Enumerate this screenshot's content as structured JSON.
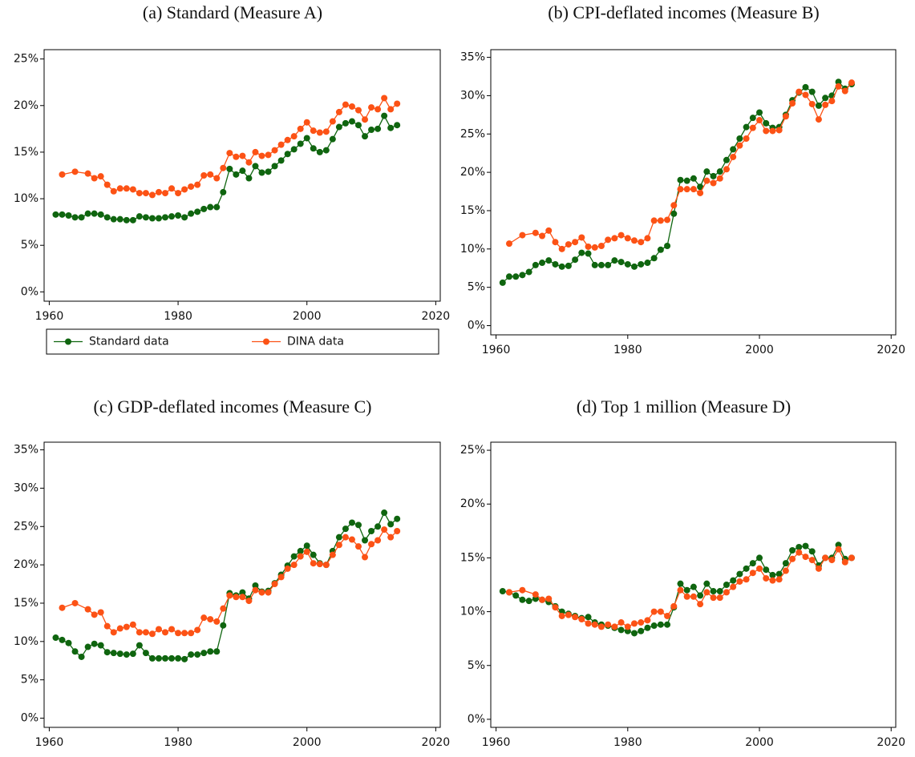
{
  "chart_data": [
    {
      "type": "line",
      "title": "(a) Standard (Measure A)",
      "legend": "bottom",
      "xlim": [
        1959.2,
        2020.7
      ],
      "xticks": [
        1960,
        1980,
        2000,
        2020
      ],
      "ylim": [
        -1,
        26
      ],
      "yticks": [
        {
          "value": 0,
          "label": "0%"
        },
        {
          "value": 5,
          "label": "5%"
        },
        {
          "value": 10,
          "label": "10%"
        },
        {
          "value": 15,
          "label": "15%"
        },
        {
          "value": 20,
          "label": "20%"
        },
        {
          "value": 25,
          "label": "25%"
        }
      ],
      "series": [
        {
          "name": "Standard data",
          "color": "#0f650f",
          "x": [
            1961,
            1962,
            1963,
            1964,
            1965,
            1966,
            1967,
            1968,
            1969,
            1970,
            1971,
            1972,
            1973,
            1974,
            1975,
            1976,
            1977,
            1978,
            1979,
            1980,
            1981,
            1982,
            1983,
            1984,
            1985,
            1986,
            1987,
            1988,
            1989,
            1990,
            1991,
            1992,
            1993,
            1994,
            1995,
            1996,
            1997,
            1998,
            1999,
            2000,
            2001,
            2002,
            2003,
            2004,
            2005,
            2006,
            2007,
            2008,
            2009,
            2010,
            2011,
            2012,
            2013,
            2014
          ],
          "values": [
            8.3,
            8.3,
            8.2,
            8.0,
            8.0,
            8.4,
            8.4,
            8.3,
            8.0,
            7.8,
            7.8,
            7.7,
            7.7,
            8.1,
            8.0,
            7.9,
            7.9,
            8.0,
            8.1,
            8.2,
            8.0,
            8.4,
            8.6,
            8.9,
            9.1,
            9.1,
            10.7,
            13.2,
            12.6,
            13.0,
            12.2,
            13.5,
            12.8,
            12.9,
            13.5,
            14.1,
            14.8,
            15.3,
            15.9,
            16.5,
            15.4,
            15.0,
            15.2,
            16.4,
            17.7,
            18.1,
            18.3,
            17.9,
            16.7,
            17.4,
            17.5,
            18.9,
            17.6,
            17.9
          ]
        },
        {
          "name": "DINA data",
          "color": "#fc5215",
          "x": [
            1962,
            1964,
            1966,
            1967,
            1968,
            1969,
            1970,
            1971,
            1972,
            1973,
            1974,
            1975,
            1976,
            1977,
            1978,
            1979,
            1980,
            1981,
            1982,
            1983,
            1984,
            1985,
            1986,
            1987,
            1988,
            1989,
            1990,
            1991,
            1992,
            1993,
            1994,
            1995,
            1996,
            1997,
            1998,
            1999,
            2000,
            2001,
            2002,
            2003,
            2004,
            2005,
            2006,
            2007,
            2008,
            2009,
            2010,
            2011,
            2012,
            2013,
            2014
          ],
          "values": [
            12.6,
            12.9,
            12.7,
            12.2,
            12.4,
            11.5,
            10.8,
            11.1,
            11.1,
            11.0,
            10.6,
            10.6,
            10.4,
            10.7,
            10.6,
            11.1,
            10.6,
            11.0,
            11.3,
            11.5,
            12.5,
            12.6,
            12.2,
            13.3,
            14.9,
            14.5,
            14.6,
            13.9,
            15.0,
            14.6,
            14.7,
            15.2,
            15.8,
            16.3,
            16.7,
            17.5,
            18.2,
            17.3,
            17.1,
            17.2,
            18.3,
            19.3,
            20.1,
            19.9,
            19.5,
            18.5,
            19.8,
            19.6,
            20.8,
            19.6,
            20.2
          ]
        }
      ]
    },
    {
      "type": "line",
      "title": "(b) CPI-deflated incomes (Measure B)",
      "xlim": [
        1959.2,
        2020.7
      ],
      "xticks": [
        1960,
        1980,
        2000,
        2020
      ],
      "ylim": [
        -1.2,
        36
      ],
      "yticks": [
        {
          "value": 0,
          "label": "0%"
        },
        {
          "value": 5,
          "label": "5%"
        },
        {
          "value": 10,
          "label": "10%"
        },
        {
          "value": 15,
          "label": "15%"
        },
        {
          "value": 20,
          "label": "20%"
        },
        {
          "value": 25,
          "label": "25%"
        },
        {
          "value": 30,
          "label": "30%"
        },
        {
          "value": 35,
          "label": "35%"
        }
      ],
      "series": [
        {
          "name": "Standard data",
          "color": "#0f650f",
          "x": [
            1961,
            1962,
            1963,
            1964,
            1965,
            1966,
            1967,
            1968,
            1969,
            1970,
            1971,
            1972,
            1973,
            1974,
            1975,
            1976,
            1977,
            1978,
            1979,
            1980,
            1981,
            1982,
            1983,
            1984,
            1985,
            1986,
            1987,
            1988,
            1989,
            1990,
            1991,
            1992,
            1993,
            1994,
            1995,
            1996,
            1997,
            1998,
            1999,
            2000,
            2001,
            2002,
            2003,
            2004,
            2005,
            2006,
            2007,
            2008,
            2009,
            2010,
            2011,
            2012,
            2013,
            2014
          ],
          "values": [
            5.6,
            6.4,
            6.4,
            6.6,
            7.0,
            7.9,
            8.2,
            8.5,
            8.0,
            7.7,
            7.8,
            8.6,
            9.5,
            9.4,
            7.9,
            7.9,
            7.9,
            8.5,
            8.3,
            8.0,
            7.7,
            8.0,
            8.2,
            8.8,
            9.9,
            10.4,
            14.6,
            19.0,
            18.9,
            19.2,
            18.1,
            20.1,
            19.5,
            20.1,
            21.6,
            23.0,
            24.4,
            25.9,
            27.1,
            27.8,
            26.4,
            25.8,
            25.9,
            27.5,
            29.4,
            30.4,
            31.1,
            30.5,
            28.7,
            29.7,
            30.0,
            31.8,
            30.9,
            31.5
          ]
        },
        {
          "name": "DINA data",
          "color": "#fc5215",
          "x": [
            1962,
            1964,
            1966,
            1967,
            1968,
            1969,
            1970,
            1971,
            1972,
            1973,
            1974,
            1975,
            1976,
            1977,
            1978,
            1979,
            1980,
            1981,
            1982,
            1983,
            1984,
            1985,
            1986,
            1987,
            1988,
            1989,
            1990,
            1991,
            1992,
            1993,
            1994,
            1995,
            1996,
            1997,
            1998,
            1999,
            2000,
            2001,
            2002,
            2003,
            2004,
            2005,
            2006,
            2007,
            2008,
            2009,
            2010,
            2011,
            2012,
            2013,
            2014
          ],
          "values": [
            10.7,
            11.8,
            12.1,
            11.7,
            12.4,
            10.9,
            10.0,
            10.6,
            10.9,
            11.5,
            10.3,
            10.2,
            10.4,
            11.2,
            11.4,
            11.8,
            11.4,
            11.1,
            10.9,
            11.4,
            13.7,
            13.7,
            13.8,
            15.7,
            17.8,
            17.8,
            17.8,
            17.3,
            18.9,
            18.6,
            19.2,
            20.4,
            22.0,
            23.5,
            24.4,
            25.8,
            26.8,
            25.4,
            25.4,
            25.5,
            27.3,
            29.0,
            30.5,
            30.1,
            28.9,
            26.9,
            28.8,
            29.3,
            31.2,
            30.6,
            31.7
          ]
        }
      ]
    },
    {
      "type": "line",
      "title": "(c) GDP-deflated incomes (Measure C)",
      "xlim": [
        1959.2,
        2020.7
      ],
      "xticks": [
        1960,
        1980,
        2000,
        2020
      ],
      "ylim": [
        -1.2,
        36
      ],
      "yticks": [
        {
          "value": 0,
          "label": "0%"
        },
        {
          "value": 5,
          "label": "5%"
        },
        {
          "value": 10,
          "label": "10%"
        },
        {
          "value": 15,
          "label": "15%"
        },
        {
          "value": 20,
          "label": "20%"
        },
        {
          "value": 25,
          "label": "25%"
        },
        {
          "value": 30,
          "label": "30%"
        },
        {
          "value": 35,
          "label": "35%"
        }
      ],
      "series": [
        {
          "name": "Standard data",
          "color": "#0f650f",
          "x": [
            1961,
            1962,
            1963,
            1964,
            1965,
            1966,
            1967,
            1968,
            1969,
            1970,
            1971,
            1972,
            1973,
            1974,
            1975,
            1976,
            1977,
            1978,
            1979,
            1980,
            1981,
            1982,
            1983,
            1984,
            1985,
            1986,
            1987,
            1988,
            1989,
            1990,
            1991,
            1992,
            1993,
            1994,
            1995,
            1996,
            1997,
            1998,
            1999,
            2000,
            2001,
            2002,
            2003,
            2004,
            2005,
            2006,
            2007,
            2008,
            2009,
            2010,
            2011,
            2012,
            2013,
            2014
          ],
          "values": [
            10.5,
            10.2,
            9.8,
            8.7,
            8.0,
            9.3,
            9.7,
            9.5,
            8.6,
            8.5,
            8.4,
            8.3,
            8.4,
            9.5,
            8.5,
            7.8,
            7.8,
            7.8,
            7.8,
            7.8,
            7.7,
            8.3,
            8.3,
            8.5,
            8.7,
            8.7,
            12.1,
            16.3,
            16.0,
            16.4,
            15.6,
            17.3,
            16.5,
            16.6,
            17.6,
            18.7,
            19.9,
            21.1,
            21.8,
            22.5,
            21.3,
            20.2,
            20.0,
            21.8,
            23.6,
            24.7,
            25.5,
            25.2,
            23.2,
            24.4,
            25.0,
            26.8,
            25.3,
            26.0
          ]
        },
        {
          "name": "DINA data",
          "color": "#fc5215",
          "x": [
            1962,
            1964,
            1966,
            1967,
            1968,
            1969,
            1970,
            1971,
            1972,
            1973,
            1974,
            1975,
            1976,
            1977,
            1978,
            1979,
            1980,
            1981,
            1982,
            1983,
            1984,
            1985,
            1986,
            1987,
            1988,
            1989,
            1990,
            1991,
            1992,
            1993,
            1994,
            1995,
            1996,
            1997,
            1998,
            1999,
            2000,
            2001,
            2002,
            2003,
            2004,
            2005,
            2006,
            2007,
            2008,
            2009,
            2010,
            2011,
            2012,
            2013,
            2014
          ],
          "values": [
            14.4,
            15.0,
            14.2,
            13.5,
            13.8,
            12.0,
            11.2,
            11.7,
            11.9,
            12.2,
            11.2,
            11.2,
            11.0,
            11.6,
            11.2,
            11.6,
            11.1,
            11.1,
            11.1,
            11.5,
            13.1,
            12.9,
            12.6,
            14.3,
            16.0,
            15.8,
            15.8,
            15.3,
            16.7,
            16.4,
            16.4,
            17.5,
            18.4,
            19.5,
            20.0,
            21.1,
            21.7,
            20.2,
            20.1,
            20.0,
            21.3,
            22.6,
            23.6,
            23.3,
            22.4,
            21.0,
            22.7,
            23.2,
            24.6,
            23.6,
            24.4
          ]
        }
      ]
    },
    {
      "type": "line",
      "title": "(d) Top 1 million (Measure D)",
      "xlim": [
        1959.2,
        2020.7
      ],
      "xticks": [
        1960,
        1980,
        2000,
        2020
      ],
      "ylim": [
        -0.75,
        25.75
      ],
      "yticks": [
        {
          "value": 0,
          "label": "0%"
        },
        {
          "value": 5,
          "label": "5%"
        },
        {
          "value": 10,
          "label": "10%"
        },
        {
          "value": 15,
          "label": "15%"
        },
        {
          "value": 20,
          "label": "20%"
        },
        {
          "value": 25,
          "label": "25%"
        }
      ],
      "series": [
        {
          "name": "Standard data",
          "color": "#0f650f",
          "x": [
            1961,
            1962,
            1963,
            1964,
            1965,
            1966,
            1967,
            1968,
            1969,
            1970,
            1971,
            1972,
            1973,
            1974,
            1975,
            1976,
            1977,
            1978,
            1979,
            1980,
            1981,
            1982,
            1983,
            1984,
            1985,
            1986,
            1987,
            1988,
            1989,
            1990,
            1991,
            1992,
            1993,
            1994,
            1995,
            1996,
            1997,
            1998,
            1999,
            2000,
            2001,
            2002,
            2003,
            2004,
            2005,
            2006,
            2007,
            2008,
            2009,
            2010,
            2011,
            2012,
            2013,
            2014
          ],
          "values": [
            11.9,
            11.8,
            11.5,
            11.1,
            11.0,
            11.2,
            11.1,
            10.9,
            10.5,
            10.0,
            9.8,
            9.6,
            9.4,
            9.5,
            9.0,
            8.8,
            8.7,
            8.5,
            8.3,
            8.2,
            8.0,
            8.2,
            8.5,
            8.7,
            8.8,
            8.8,
            10.4,
            12.6,
            12.0,
            12.3,
            11.5,
            12.6,
            11.9,
            11.9,
            12.5,
            12.9,
            13.5,
            14.0,
            14.5,
            15.0,
            13.9,
            13.4,
            13.5,
            14.5,
            15.7,
            16.0,
            16.1,
            15.6,
            14.3,
            15.0,
            15.0,
            16.2,
            14.9,
            15.0
          ]
        },
        {
          "name": "DINA data",
          "color": "#fc5215",
          "x": [
            1962,
            1964,
            1966,
            1967,
            1968,
            1969,
            1970,
            1971,
            1972,
            1973,
            1974,
            1975,
            1976,
            1977,
            1978,
            1979,
            1980,
            1981,
            1982,
            1983,
            1984,
            1985,
            1986,
            1987,
            1988,
            1989,
            1990,
            1991,
            1992,
            1993,
            1994,
            1995,
            1996,
            1997,
            1998,
            1999,
            2000,
            2001,
            2002,
            2003,
            2004,
            2005,
            2006,
            2007,
            2008,
            2009,
            2010,
            2011,
            2012,
            2013,
            2014
          ],
          "values": [
            11.8,
            12.0,
            11.6,
            11.1,
            11.2,
            10.4,
            9.6,
            9.7,
            9.5,
            9.3,
            8.9,
            8.8,
            8.6,
            8.8,
            8.6,
            9.0,
            8.6,
            8.9,
            9.0,
            9.2,
            10.0,
            10.0,
            9.6,
            10.5,
            12.0,
            11.4,
            11.4,
            10.7,
            11.8,
            11.3,
            11.3,
            11.8,
            12.3,
            12.8,
            13.0,
            13.6,
            14.0,
            13.1,
            12.9,
            13.0,
            13.8,
            14.9,
            15.5,
            15.1,
            14.8,
            14.0,
            15.0,
            14.8,
            15.8,
            14.6,
            15.0
          ]
        }
      ]
    }
  ]
}
